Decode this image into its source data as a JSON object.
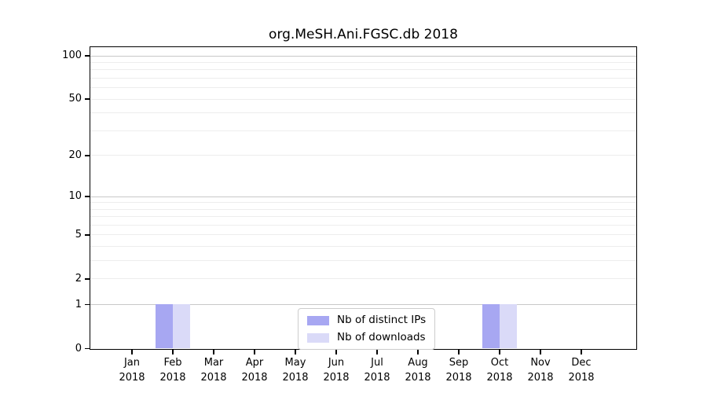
{
  "chart_data": {
    "type": "bar",
    "title": "org.MeSH.Ani.FGSC.db 2018",
    "x_tick_labels": [
      {
        "month": "Jan",
        "year": "2018"
      },
      {
        "month": "Feb",
        "year": "2018"
      },
      {
        "month": "Mar",
        "year": "2018"
      },
      {
        "month": "Apr",
        "year": "2018"
      },
      {
        "month": "May",
        "year": "2018"
      },
      {
        "month": "Jun",
        "year": "2018"
      },
      {
        "month": "Jul",
        "year": "2018"
      },
      {
        "month": "Aug",
        "year": "2018"
      },
      {
        "month": "Sep",
        "year": "2018"
      },
      {
        "month": "Oct",
        "year": "2018"
      },
      {
        "month": "Nov",
        "year": "2018"
      },
      {
        "month": "Dec",
        "year": "2018"
      }
    ],
    "series": [
      {
        "name": "Nb of distinct IPs",
        "color": "#a7a7f2",
        "values": [
          0,
          1,
          0,
          0,
          0,
          0,
          0,
          0,
          0,
          1,
          0,
          0
        ]
      },
      {
        "name": "Nb of downloads",
        "color": "#dadaf8",
        "values": [
          0,
          1,
          0,
          0,
          0,
          0,
          0,
          0,
          0,
          1,
          0,
          0
        ]
      }
    ],
    "y_axis": {
      "scale": "log1p",
      "max": 100,
      "ticks": [
        0,
        1,
        2,
        5,
        10,
        20,
        50,
        100
      ],
      "major_grid": [
        1,
        10,
        100
      ],
      "minor_grid": [
        2,
        3,
        4,
        6,
        7,
        8,
        9,
        20,
        30,
        40,
        50,
        60,
        70,
        80,
        90,
        5
      ]
    },
    "ylim": [
      0,
      116
    ],
    "grid": "horizontal",
    "legend_position": "bottom-center",
    "colors": {
      "background": "#ffffff",
      "axis": "#000000",
      "major_grid": "#c8c8c8",
      "minor_grid": "#ededed"
    }
  }
}
